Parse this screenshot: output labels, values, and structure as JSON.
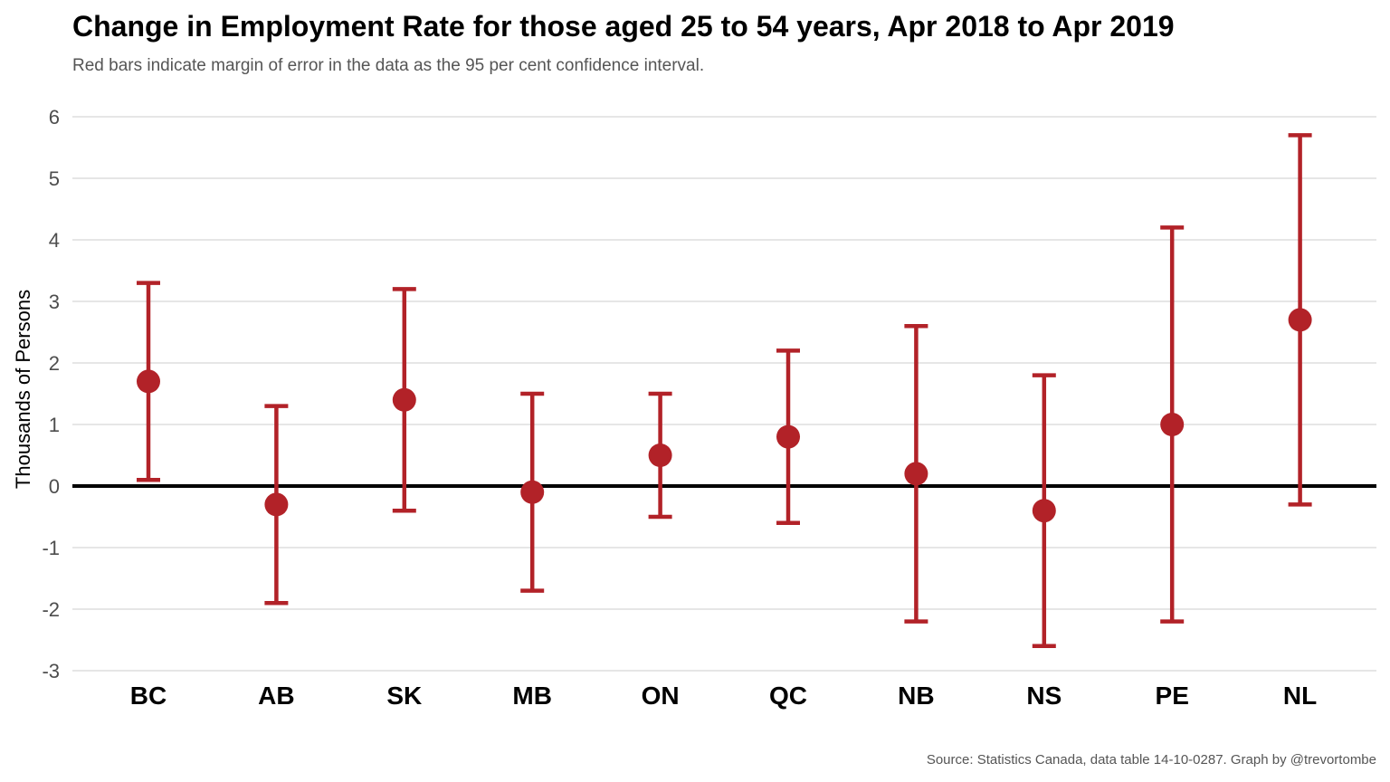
{
  "chart_data": {
    "type": "scatter",
    "title": "Change in Employment Rate for those aged 25 to 54 years, Apr 2018 to Apr 2019",
    "subtitle": "Red bars indicate margin of error in the data as the 95 per cent confidence interval.",
    "caption": "Source: Statistics Canada, data table 14-10-0287. Graph by @trevortombe",
    "xlabel": "",
    "ylabel": "Thousands of Persons",
    "ylim": [
      -3,
      6
    ],
    "yticks": [
      -3,
      -2,
      -1,
      0,
      1,
      2,
      3,
      4,
      5,
      6
    ],
    "categories": [
      "BC",
      "AB",
      "SK",
      "MB",
      "ON",
      "QC",
      "NB",
      "NS",
      "PE",
      "NL"
    ],
    "values": [
      1.7,
      -0.3,
      1.4,
      -0.1,
      0.5,
      0.8,
      0.2,
      -0.4,
      1.0,
      2.7
    ],
    "lower": [
      0.1,
      -1.9,
      -0.4,
      -1.7,
      -0.5,
      -0.6,
      -2.2,
      -2.6,
      -2.2,
      -0.3
    ],
    "upper": [
      3.3,
      1.3,
      3.2,
      1.5,
      1.5,
      2.2,
      2.6,
      1.8,
      4.2,
      5.7
    ],
    "grid": true,
    "reference_line": 0,
    "colors": {
      "point": "#b22228",
      "errorbar": "#b22228",
      "zero_line": "#000000",
      "grid": "#e6e6e6"
    }
  }
}
